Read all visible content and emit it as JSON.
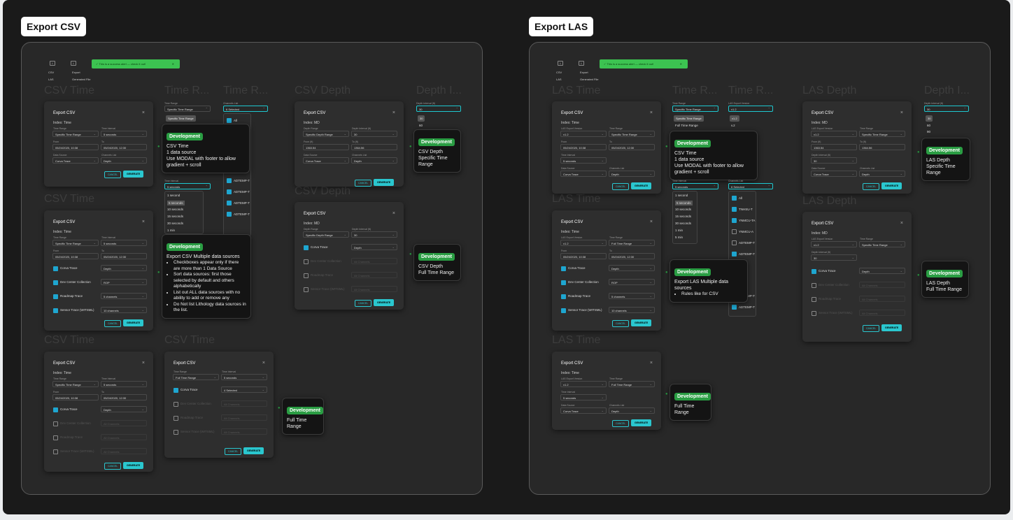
{
  "sections": {
    "csv": "Export CSV",
    "las": "Export LAS"
  },
  "ghost": {
    "csv_time": "CSV Time",
    "time_r": "Time R...",
    "csv_depth": "CSV Depth",
    "depth_i": "Depth I...",
    "las_time": "LAS Time",
    "las_depth": "LAS Depth",
    "time_r2": "Time R..."
  },
  "toolbar": {
    "csv": "CSV",
    "las": "LAS",
    "export": "Export",
    "generated": "Generated File",
    "toast": "This is a success alert — check it out!"
  },
  "modal": {
    "export_csv": "Export CSV",
    "export_las": "Export LAS",
    "close": "×",
    "index_time": "Index: Time",
    "index_md": "Index: MD",
    "time_range": "Time Range",
    "time_interval": "Time Interval",
    "from": "From",
    "to": "To",
    "data_source": "Data Source",
    "channels_list": "Channels List",
    "depth_range": "Depth Range",
    "depth_interval": "Depth Interval (ft)",
    "from_ft": "From (ft)",
    "to_ft": "To (ft)",
    "las_version": "LAS Export Version",
    "specific_time": "Specific Time Range",
    "full_time": "Full Time Range",
    "specific_depth": "Specific Depth Range",
    "five_sec": "5 seconds",
    "from_date": "05/24/2020, 10:38",
    "to_date": "05/24/2020, 12:30",
    "corva": "Corva Trace",
    "dev_center": "Dev Center Collection",
    "roadmap": "Roadmap Trace",
    "sensor": "Sensor Trace (WITSML)",
    "depth": "Depth",
    "rop": "ROP",
    "ten_ch": "10 channels",
    "five_ch": "5 channels",
    "four_sel": "4 Selected",
    "all_ch": "All Channels",
    "from_val": "1363.54",
    "to_val": "1364.56",
    "thirty": "30",
    "v12": "v1.2",
    "v2": "v.2",
    "cancel": "CANCEL",
    "generate": "GENERATE",
    "six_sel": "6 Selected"
  },
  "dd": {
    "opts": [
      "1 second",
      "5 seconds",
      "10 seconds",
      "15 seconds",
      "30 seconds",
      "1 min",
      "5 min"
    ],
    "ch_all": "All",
    "ch_list": [
      "ADTEMP-T",
      "ADTEMP-T",
      "ADTEMP-T",
      "ADTEMP-T",
      "ADTEMP-T",
      "ADTEMP-T"
    ],
    "las_ch": [
      "TNHSU-T",
      "YNMCU-TA",
      "YNMCU-A",
      "ADTEMP-T",
      "ADTEMP-T",
      "ADTEMP-T"
    ],
    "depth_opts": [
      "30",
      "60",
      "90"
    ]
  },
  "notes": {
    "dev": "Development",
    "csv_time_1": "CSV Time",
    "one_ds": "1 data source",
    "modal_footer": "Use MODAL with footer to allow gradient + scroll",
    "csv_depth": "CSV Depth",
    "spec_time": "Specific Time Range",
    "full_time": "Full Time Range",
    "multi": "Export CSV Multiple data sources",
    "b1": "Checkboxes appear only if there are more than 1 Data Source",
    "b2": "Sort data sources: first those selected by default and others alphabetically",
    "b3": "List out ALL data sources with no ability to add or remove any",
    "b4": "Do Not list Lithology data sources in the list.",
    "las_time": "LAS Time",
    "las_multi": "Export LAS Multiple data sources",
    "las_rules": "Rules like for CSV",
    "las_depth": "LAS Depth"
  }
}
